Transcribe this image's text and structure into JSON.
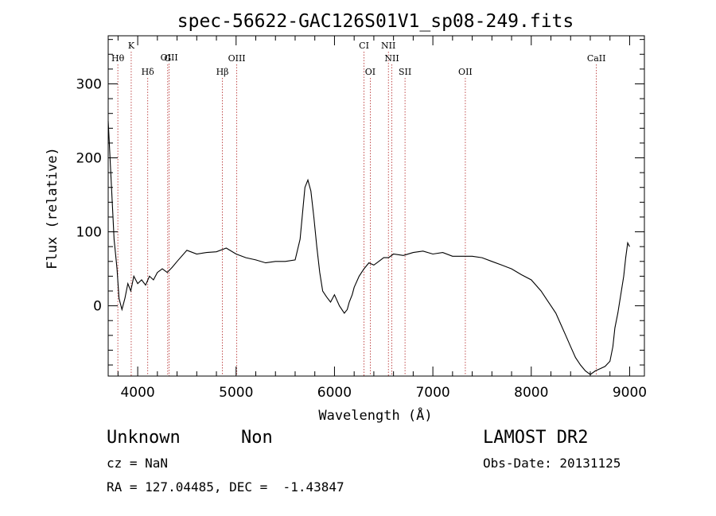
{
  "chart_data": {
    "type": "line",
    "title": "spec-56622-GAC126S01V1_sp08-249.fits",
    "xlabel": "Wavelength (Å)",
    "ylabel": "Flux (relative)",
    "xlim": [
      3700,
      9150
    ],
    "ylim": [
      -95,
      365
    ],
    "xticks": [
      4000,
      5000,
      6000,
      7000,
      8000,
      9000
    ],
    "yticks": [
      0,
      100,
      200,
      300
    ],
    "grid": false,
    "line_color": "#000000",
    "marker_color": "#b22222",
    "spectral_lines": [
      {
        "label": "Hθ",
        "wavelength": 3798,
        "row": 2
      },
      {
        "label": "K",
        "wavelength": 3934,
        "row": 0
      },
      {
        "label": "Hδ",
        "wavelength": 4102,
        "row": 3
      },
      {
        "label": "OIII",
        "wavelength": 4320,
        "row": 1
      },
      {
        "label": "G",
        "wavelength": 4305,
        "row": 2
      },
      {
        "label": "Hβ",
        "wavelength": 4861,
        "row": 3
      },
      {
        "label": "OIII",
        "wavelength": 5007,
        "row": 2
      },
      {
        "label": "CI",
        "wavelength": 6300,
        "row": 0
      },
      {
        "label": "OI",
        "wavelength": 6364,
        "row": 3
      },
      {
        "label": "NII",
        "wavelength": 6548,
        "row": 0
      },
      {
        "label": "NII",
        "wavelength": 6583,
        "row": 2
      },
      {
        "label": "SII",
        "wavelength": 6717,
        "row": 3
      },
      {
        "label": "OII",
        "wavelength": 7330,
        "row": 3
      },
      {
        "label": "CaII",
        "wavelength": 8662,
        "row": 2
      }
    ],
    "series": [
      {
        "x": [
          3700,
          3730,
          3760,
          3790,
          3810,
          3840,
          3870,
          3900,
          3930,
          3960,
          4000,
          4040,
          4080,
          4120,
          4160,
          4200,
          4250,
          4300,
          4350,
          4400,
          4500,
          4600,
          4700,
          4800,
          4900,
          5000,
          5100,
          5200,
          5300,
          5400,
          5500,
          5600,
          5650,
          5700,
          5730,
          5760,
          5790,
          5820,
          5850,
          5880,
          5920,
          5960,
          6000,
          6050,
          6100,
          6130,
          6150,
          6180,
          6200,
          6250,
          6300,
          6350,
          6400,
          6450,
          6500,
          6550,
          6600,
          6700,
          6800,
          6900,
          7000,
          7100,
          7200,
          7300,
          7400,
          7500,
          7600,
          7700,
          7800,
          7900,
          8000,
          8100,
          8150,
          8200,
          8250,
          8300,
          8350,
          8400,
          8450,
          8500,
          8550,
          8600,
          8650,
          8700,
          8750,
          8800,
          8830,
          8850,
          8880,
          8910,
          8940,
          8960,
          8980,
          9000
        ],
        "y": [
          250,
          170,
          90,
          50,
          10,
          -5,
          10,
          30,
          20,
          40,
          30,
          35,
          28,
          40,
          35,
          45,
          50,
          45,
          52,
          60,
          75,
          70,
          72,
          73,
          78,
          70,
          65,
          62,
          58,
          60,
          60,
          62,
          90,
          160,
          170,
          155,
          120,
          80,
          45,
          20,
          12,
          5,
          15,
          0,
          -10,
          -5,
          5,
          15,
          25,
          40,
          50,
          58,
          55,
          60,
          65,
          65,
          70,
          68,
          72,
          74,
          70,
          72,
          67,
          67,
          67,
          65,
          60,
          55,
          50,
          42,
          35,
          20,
          10,
          0,
          -10,
          -25,
          -40,
          -55,
          -70,
          -80,
          -88,
          -93,
          -88,
          -85,
          -82,
          -75,
          -55,
          -30,
          -10,
          15,
          40,
          65,
          85,
          80
        ]
      }
    ]
  },
  "info": {
    "object_class": "Unknown",
    "subclass": "Non",
    "survey": "LAMOST DR2",
    "cz": "cz = NaN",
    "obs_date": "Obs-Date: 20131125",
    "coords": "RA = 127.04485, DEC =  -1.43847"
  }
}
